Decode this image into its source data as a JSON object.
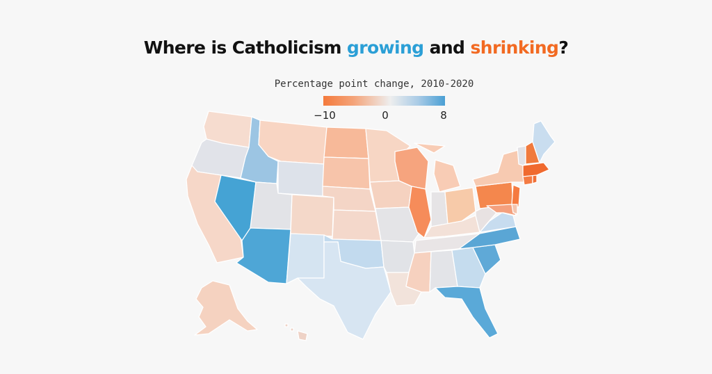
{
  "title": {
    "prefix": "Where is Catholicism ",
    "growing": "growing",
    "middle": " and ",
    "shrinking": "shrinking",
    "suffix": "?"
  },
  "legend": {
    "title": "Percentage point change, 2010-2020",
    "ticks": [
      "−10",
      "0",
      "8"
    ],
    "min": -10,
    "max": 8,
    "colors": {
      "shrink": "#f47a3c",
      "neutral": "#eeeeee",
      "grow": "#4a9fd4"
    }
  },
  "colors": {
    "title_growing": "#2b9fd6",
    "title_shrinking": "#f26a22",
    "background": "#f7f7f7"
  }
}
